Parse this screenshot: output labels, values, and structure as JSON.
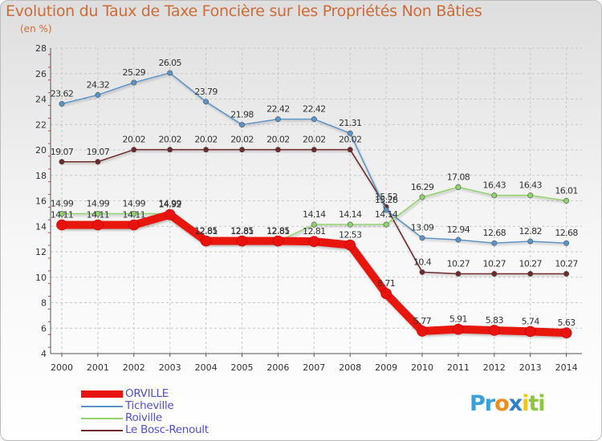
{
  "chart_data": {
    "type": "line",
    "title": "Evolution du Taux de Taxe Foncière sur les Propriétés Non Bâties",
    "subtitle": "(en %)",
    "xlabel": "",
    "ylabel": "(en %)",
    "ylim": [
      4,
      28
    ],
    "grid": true,
    "legend_position": "bottom-left",
    "x": [
      "2000",
      "2001",
      "2002",
      "2003",
      "2004",
      "2005",
      "2006",
      "2007",
      "2008",
      "2009",
      "2010",
      "2011",
      "2012",
      "2013",
      "2014"
    ],
    "y_ticks": [
      4,
      6,
      8,
      10,
      12,
      14,
      16,
      18,
      20,
      22,
      24,
      26,
      28
    ],
    "series": [
      {
        "name": "ORVILLE",
        "color": "#e8120e",
        "width": 10,
        "values": [
          14.11,
          14.11,
          14.11,
          14.92,
          12.85,
          12.85,
          12.85,
          12.81,
          12.53,
          8.71,
          5.77,
          5.91,
          5.83,
          5.74,
          5.63
        ],
        "labels": [
          "14.11",
          "14.11",
          "14.11",
          "14.92",
          "12.85",
          "12.85",
          "12.85",
          "12.81",
          "12.53",
          "8.71",
          "5.77",
          "5.91",
          "5.83",
          "5.74",
          "5.63"
        ],
        "show_labels": [
          true,
          true,
          true,
          true,
          true,
          true,
          true,
          true,
          true,
          true,
          true,
          true,
          true,
          true,
          true
        ]
      },
      {
        "name": "Ticheville",
        "color": "#5a93c8",
        "width": 1.5,
        "values": [
          23.62,
          24.32,
          25.29,
          26.05,
          23.79,
          21.98,
          22.42,
          22.42,
          21.31,
          15.28,
          13.09,
          12.94,
          12.68,
          12.82,
          12.68
        ],
        "labels": [
          "23.62",
          "24.32",
          "25.29",
          "26.05",
          "23.79",
          "21.98",
          "22.42",
          "22.42",
          "21.31",
          "15.28",
          "13.09",
          "12.94",
          "12.68",
          "12.82",
          "12.68"
        ],
        "show_labels": [
          true,
          true,
          true,
          true,
          true,
          true,
          true,
          true,
          true,
          true,
          true,
          true,
          true,
          true,
          true
        ]
      },
      {
        "name": "Roiville",
        "color": "#8fd46a",
        "width": 1.5,
        "values": [
          14.99,
          14.99,
          14.99,
          14.99,
          12.81,
          12.81,
          12.81,
          14.14,
          14.14,
          14.14,
          16.29,
          17.08,
          16.43,
          16.43,
          16.01
        ],
        "labels": [
          "14.99",
          "14.99",
          "14.99",
          "14.99",
          "12.81",
          "12.81",
          "12.81",
          "14.14",
          "14.14",
          "14.14",
          "16.29",
          "17.08",
          "16.43",
          "16.43",
          "16.01"
        ],
        "show_labels": [
          true,
          true,
          true,
          true,
          true,
          true,
          true,
          true,
          true,
          true,
          true,
          true,
          true,
          true,
          true
        ]
      },
      {
        "name": "Le Bosc-Renoult",
        "color": "#6e2a2a",
        "width": 1.5,
        "values": [
          19.07,
          19.07,
          20.02,
          20.02,
          20.02,
          20.02,
          20.02,
          20.02,
          20.02,
          15.52,
          10.4,
          10.27,
          10.27,
          10.27,
          10.27
        ],
        "labels": [
          "19.07",
          "19.07",
          "20.02",
          "20.02",
          "20.02",
          "20.02",
          "20.02",
          "20.02",
          "20.02",
          "15.52",
          "10.4",
          "10.27",
          "10.27",
          "10.27",
          "10.27"
        ],
        "show_labels": [
          true,
          true,
          true,
          true,
          true,
          true,
          true,
          true,
          true,
          true,
          true,
          true,
          true,
          true,
          true
        ]
      }
    ]
  },
  "brand": {
    "letters": [
      "P",
      "r",
      "o",
      "x",
      "i",
      "t",
      "i"
    ],
    "colors": [
      "#3aa0d8",
      "#3aa0d8",
      "#f08c1e",
      "#2f7fc8",
      "#f0c41e",
      "#8cc63e",
      "#8cc63e"
    ]
  }
}
